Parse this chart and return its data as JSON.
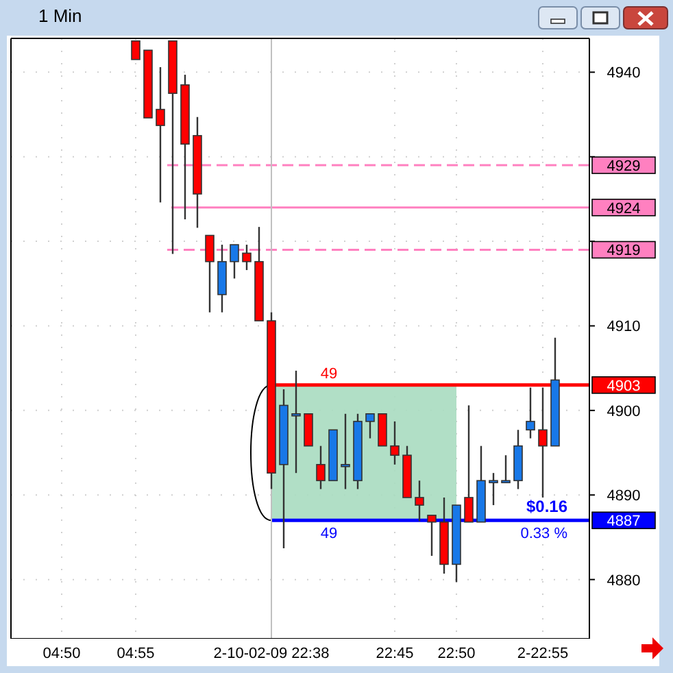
{
  "chart_data": {
    "type": "candlestick",
    "title": "1 Min",
    "categories": [
      null,
      null,
      null,
      null,
      "04:50",
      null,
      null,
      null,
      null,
      null,
      "04:55",
      null,
      null,
      null,
      null,
      null,
      null,
      null,
      null,
      null,
      null,
      "2-10-02-09 22:38",
      null,
      null,
      null,
      null,
      null,
      null,
      null,
      null,
      null,
      "22:45",
      null,
      null,
      null,
      null,
      "22:50",
      null,
      null,
      null,
      null,
      null,
      null,
      "2-22:55",
      null,
      null,
      null
    ],
    "ohlc": [
      null,
      null,
      null,
      null,
      null,
      null,
      null,
      null,
      null,
      null,
      [
        4943.7,
        4943.7,
        4941.5,
        4941.5
      ],
      [
        4942.6,
        4942.6,
        4934.6,
        4934.6
      ],
      [
        4935.6,
        4940.6,
        4924.6,
        4933.7
      ],
      [
        4943.7,
        4943.7,
        4918.5,
        4937.5
      ],
      [
        4938.5,
        4939.7,
        4922.6,
        4931.5
      ],
      [
        4932.5,
        4934.7,
        4921.6,
        4925.6
      ],
      [
        4920.7,
        4920.7,
        4911.6,
        4917.6
      ],
      [
        4913.7,
        4919.6,
        4911.6,
        4917.6
      ],
      [
        4917.6,
        4919.6,
        4915.6,
        4919.6
      ],
      [
        4918.6,
        4919.6,
        4916.6,
        4917.6
      ],
      [
        4917.6,
        4921.7,
        4910.6,
        4910.6
      ],
      [
        4910.6,
        4911.6,
        4890.7,
        4892.6
      ],
      [
        4893.6,
        4902.5,
        4883.7,
        4900.6
      ],
      [
        4899.6,
        4904.7,
        4892.6,
        4899.6
      ],
      [
        4899.6,
        4899.6,
        4895.8,
        4895.8
      ],
      [
        4893.6,
        4895.8,
        4890.7,
        4891.7
      ],
      [
        4891.7,
        4897.7,
        4891.7,
        4897.7
      ],
      [
        4893.6,
        4899.6,
        4890.7,
        4893.6
      ],
      [
        4891.7,
        4899.6,
        4890.7,
        4898.7
      ],
      [
        4898.7,
        4899.6,
        4896.7,
        4899.6
      ],
      [
        4899.6,
        4899.6,
        4895.8,
        4895.8
      ],
      [
        4895.8,
        4898.7,
        4893.6,
        4894.7
      ],
      [
        4894.7,
        4895.8,
        4889.7,
        4889.7
      ],
      [
        4889.7,
        4891.7,
        4886.9,
        4888.8
      ],
      [
        4887.6,
        4887.6,
        4882.8,
        4886.8
      ],
      [
        4886.8,
        4889.7,
        4880.7,
        4881.8
      ],
      [
        4881.8,
        4888.8,
        4879.7,
        4888.8
      ],
      [
        4889.7,
        4900.6,
        4886.8,
        4886.8
      ],
      [
        4886.8,
        4895.8,
        4886.8,
        4891.7
      ],
      [
        4891.7,
        4892.6,
        4888.8,
        4891.7
      ],
      [
        4891.7,
        4894.7,
        4891.7,
        4891.7
      ],
      [
        4891.7,
        4897.7,
        4890.7,
        4895.8
      ],
      [
        4897.7,
        4902.7,
        4896.7,
        4898.7
      ],
      [
        4897.7,
        4902.7,
        4889.7,
        4895.8
      ],
      [
        4895.8,
        4908.6,
        4895.8,
        4903.6
      ],
      null,
      null
    ],
    "colors": [
      null,
      null,
      null,
      null,
      null,
      null,
      null,
      null,
      null,
      null,
      "#ff0000",
      "#ff0000",
      "#ff0000",
      "#ff0000",
      "#ff0000",
      "#ff0000",
      "#ff0000",
      "#1878e8",
      "#1878e8",
      "#ff0000",
      "#ff0000",
      "#ff0000",
      "#1878e8",
      "#1878e8",
      "#ff0000",
      "#ff0000",
      "#1878e8",
      "#1878e8",
      "#1878e8",
      "#1878e8",
      "#ff0000",
      "#ff0000",
      "#ff0000",
      "#ff0000",
      "#ff0000",
      "#ff0000",
      "#1878e8",
      "#ff0000",
      "#1878e8",
      "#1878e8",
      "#1878e8",
      "#1878e8",
      "#1878e8",
      "#ff0000",
      "#1878e8",
      null,
      null
    ],
    "ylim": [
      4873,
      4944
    ],
    "yticks": [
      4880,
      4890,
      4900,
      4910,
      {
        "value": 4920,
        "label": null
      },
      {
        "value": 4930,
        "label": null
      },
      4940
    ],
    "grid": true,
    "ref_lines": [
      {
        "axis": "y",
        "value": 4929,
        "label": "4929",
        "color": "#ff80c0",
        "line_style": "dashed"
      },
      {
        "axis": "y",
        "value": 4924,
        "label": "4924",
        "color": "#ff80c0",
        "line_style": "solid"
      },
      {
        "axis": "y",
        "value": 4919,
        "label": "4919",
        "color": "#ff80c0",
        "line_style": "dashed"
      },
      {
        "axis": "y",
        "value": 4903,
        "label": "4903",
        "color": "#ff0000",
        "line_style": "solid"
      },
      {
        "axis": "y",
        "value": 4887,
        "label": "4887",
        "color": "#0000ff",
        "line_style": "solid"
      },
      {
        "axis": "x",
        "value": "2-10-02-09 22:38",
        "label": null,
        "color": "#c0c0c0",
        "line_style": "solid"
      }
    ],
    "bands": [
      {
        "axis": "y",
        "from": 4887,
        "to": 4903,
        "label": null,
        "color": "#a8dcc0"
      }
    ],
    "annotations": [
      "49",
      "49",
      "$0.16",
      "0.33 %"
    ]
  }
}
